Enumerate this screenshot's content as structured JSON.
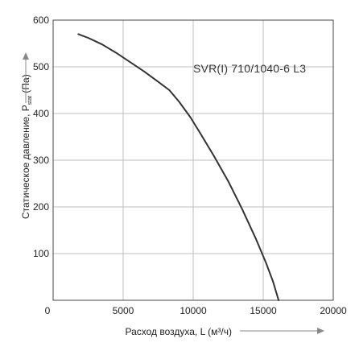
{
  "chart_data": {
    "type": "line",
    "title": "",
    "xlabel": "Расход воздуха, L (м³/ч)",
    "ylabel_main": "Статическое давление, P",
    "ylabel_sub": "stat",
    "ylabel_unit": "(Па)",
    "annotation": "SVR(I) 710/1040-6 L3",
    "xlim": [
      0,
      20000
    ],
    "ylim": [
      0,
      600
    ],
    "x_ticks": [
      0,
      5000,
      10000,
      15000,
      20000
    ],
    "y_ticks": [
      100,
      200,
      300,
      400,
      500,
      600
    ],
    "x_tick_labels": [
      "0",
      "5000",
      "10000",
      "15000",
      "20000"
    ],
    "y_tick_labels": [
      "100",
      "200",
      "300",
      "400",
      "500",
      "600"
    ],
    "grid": true,
    "series": [
      {
        "color": "#333333",
        "x": [
          1800,
          2500,
          3500,
          4500,
          5500,
          6500,
          7500,
          8300,
          9000,
          9800,
          10500,
          11500,
          12500,
          13500,
          14500,
          15200,
          15700,
          16100
        ],
        "y": [
          570,
          562,
          548,
          530,
          510,
          490,
          468,
          450,
          425,
          392,
          358,
          308,
          255,
          195,
          130,
          80,
          40,
          0
        ]
      }
    ]
  }
}
